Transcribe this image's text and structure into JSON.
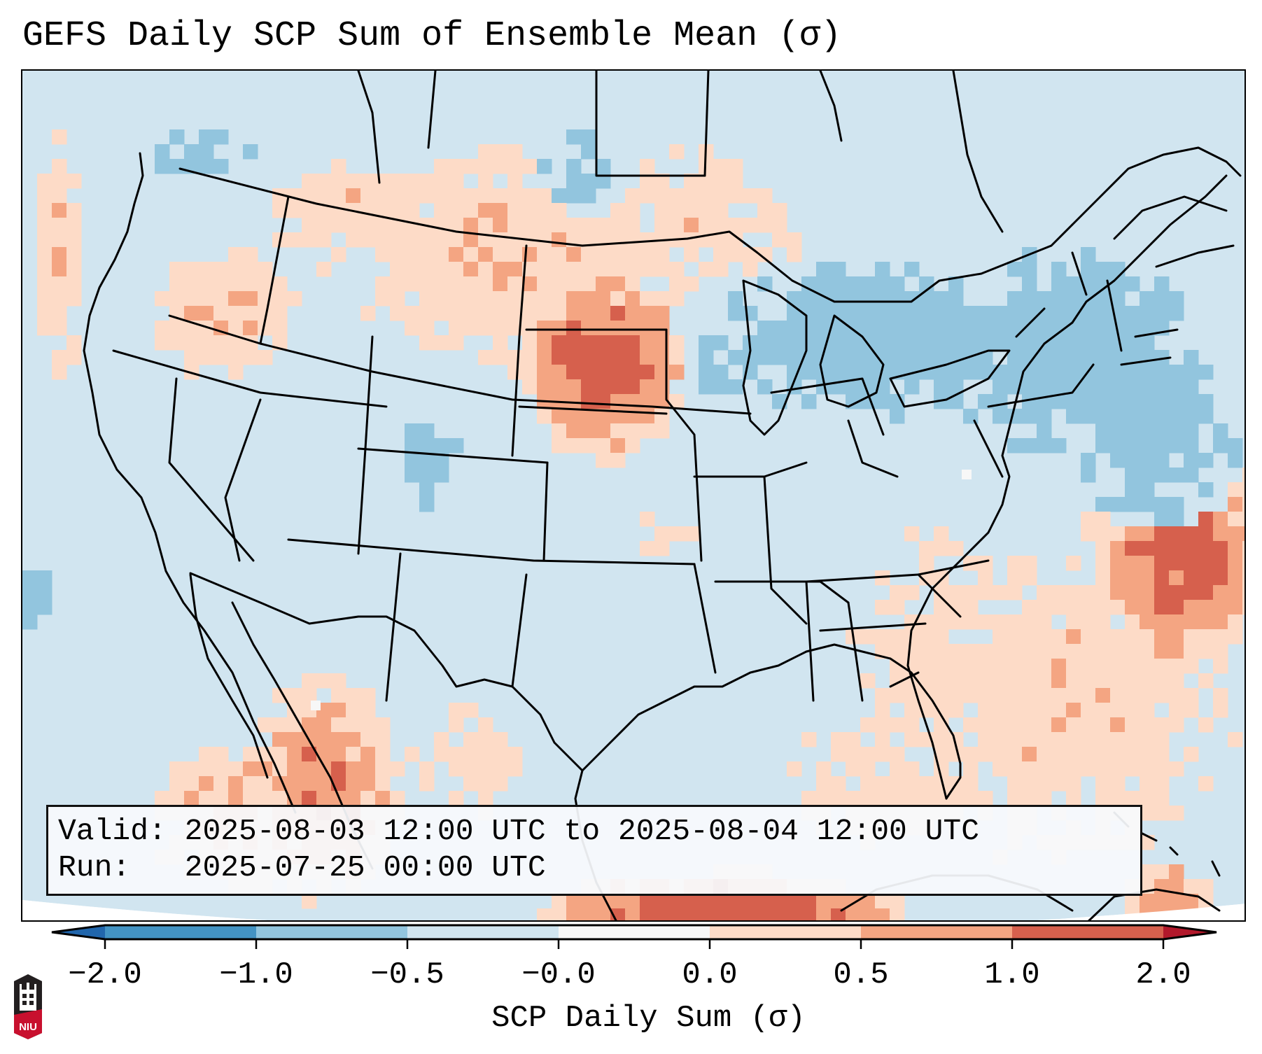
{
  "header": {
    "title": "GEFS Daily SCP Sum of Ensemble Mean (σ)"
  },
  "info_box": {
    "valid_label": "Valid:",
    "valid_value": "2025-08-03 12:00 UTC to 2025-08-04 12:00 UTC",
    "run_label": "Run:",
    "run_value": "2025-07-25 00:00 UTC"
  },
  "colorbar": {
    "label": "SCP Daily Sum (σ)",
    "ticks": [
      "−2.0",
      "−1.0",
      "−0.5",
      "−0.0",
      "0.0",
      "0.5",
      "1.0",
      "2.0"
    ],
    "bins": [
      {
        "range": "< -2.0",
        "color": "#2166ac"
      },
      {
        "range": "-2.0 to -1.0",
        "color": "#4393c3"
      },
      {
        "range": "-1.0 to -0.5",
        "color": "#92c5de"
      },
      {
        "range": "-0.5 to -0.0",
        "color": "#d1e5f0"
      },
      {
        "range": "-0.0 to 0.0",
        "color": "#f7f7f7"
      },
      {
        "range": "0.0 to 0.5",
        "color": "#fddbc7"
      },
      {
        "range": "0.5 to 1.0",
        "color": "#f4a582"
      },
      {
        "range": "1.0 to 2.0",
        "color": "#d6604d"
      },
      {
        "range": "> 2.0",
        "color": "#b2182b"
      }
    ],
    "extend": "both"
  },
  "logo": {
    "text": "NIU",
    "name": "niu-logo"
  },
  "chart_data": {
    "type": "heatmap",
    "title": "GEFS Daily SCP Sum of Ensemble Mean (σ)",
    "xlabel": "",
    "ylabel": "",
    "colorbar_label": "SCP Daily Sum (σ)",
    "region": "Contiguous United States (Lambert Conformal)",
    "background_value_sigma": -0.25,
    "regions": [
      {
        "name": "Northern/Central Plains (SD, NE)",
        "anomaly_sigma": 1.2,
        "category": "1.0 to 2.0"
      },
      {
        "name": "Northern Rockies / Montana",
        "anomaly_sigma": 0.3,
        "category": "0.0 to 0.5"
      },
      {
        "name": "Western Atlantic offshore (Carolinas east)",
        "anomaly_sigma": 1.2,
        "category": "1.0 to 2.0"
      },
      {
        "name": "Southeast coast (GA, SC, FL)",
        "anomaly_sigma": 0.3,
        "category": "0.0 to 0.5"
      },
      {
        "name": "Northern Mexico / Sierra Madre",
        "anomaly_sigma": 1.0,
        "category": "0.5 to 2.0"
      },
      {
        "name": "Caribbean / Cuba",
        "anomaly_sigma": 1.5,
        "category": "1.0 to >2.0"
      },
      {
        "name": "Great Lakes / Northeast",
        "anomaly_sigma": -0.7,
        "category": "-1.0 to -0.5"
      },
      {
        "name": "Western Atlantic offshore (New England)",
        "anomaly_sigma": -0.7,
        "category": "-1.0 to -0.5"
      },
      {
        "name": "Colorado Rockies (scattered)",
        "anomaly_sigma": -0.6,
        "category": "-1.0 to -0.5"
      },
      {
        "name": "Pacific Northwest / Oregon interior",
        "anomaly_sigma": 0.4,
        "category": "0.0 to 1.0"
      }
    ]
  }
}
